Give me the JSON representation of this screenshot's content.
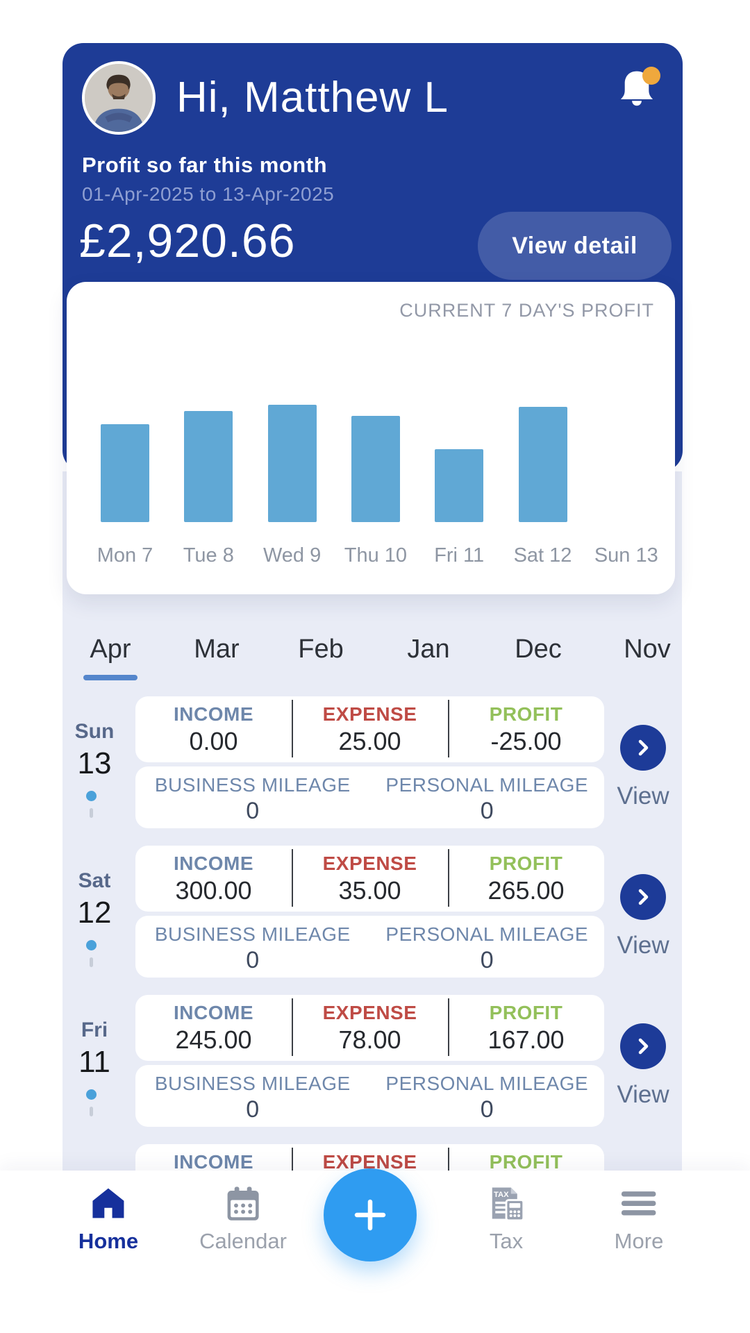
{
  "header": {
    "greeting": "Hi, Matthew L",
    "avatar": "matthew-profile-photo",
    "section_label": "Profit so far this month",
    "date_range": "01-Apr-2025 to 13-Apr-2025",
    "amount": "£2,920.66",
    "view_detail": "View detail"
  },
  "chart_data": {
    "type": "bar",
    "title": "CURRENT 7 DAY'S PROFIT",
    "categories": [
      "Mon 7",
      "Tue 8",
      "Wed 9",
      "Thu 10",
      "Fri 11",
      "Sat 12",
      "Sun 13"
    ],
    "values": [
      225,
      255,
      270,
      245,
      167,
      265,
      0
    ],
    "values_estimated": true,
    "xlabel": "",
    "ylabel": "",
    "ylim": [
      0,
      280
    ],
    "grid": false,
    "legend": false,
    "bar_color": "#60a8d5"
  },
  "months": {
    "tabs": [
      "Apr",
      "Mar",
      "Feb",
      "Jan",
      "Dec",
      "Nov"
    ],
    "active_index": 0
  },
  "list": {
    "labels": {
      "income": "INCOME",
      "expense": "EXPENSE",
      "profit": "PROFIT",
      "business_mileage": "BUSINESS MILEAGE",
      "personal_mileage": "PERSONAL MILEAGE",
      "view": "View"
    },
    "days": [
      {
        "day_name": "Sun",
        "day_num": "13",
        "income": "0.00",
        "expense": "25.00",
        "profit": "-25.00",
        "business_mileage": "0",
        "personal_mileage": "0"
      },
      {
        "day_name": "Sat",
        "day_num": "12",
        "income": "300.00",
        "expense": "35.00",
        "profit": "265.00",
        "business_mileage": "0",
        "personal_mileage": "0"
      },
      {
        "day_name": "Fri",
        "day_num": "11",
        "income": "245.00",
        "expense": "78.00",
        "profit": "167.00",
        "business_mileage": "0",
        "personal_mileage": "0"
      },
      {
        "day_name": "",
        "day_num": "",
        "income": "",
        "expense": "",
        "profit": "",
        "business_mileage": "",
        "personal_mileage": ""
      }
    ]
  },
  "nav": {
    "items": [
      {
        "label": "Home",
        "active": true
      },
      {
        "label": "Calendar",
        "active": false
      },
      {
        "label": "Tax",
        "active": false
      },
      {
        "label": "More",
        "active": false
      }
    ],
    "fab_label": "+"
  },
  "colors": {
    "header_blue": "#1e3c96",
    "view_circle_blue": "#1d3b98",
    "fab_blue": "#2f9cf1",
    "bar_blue": "#60a8d5",
    "badge_orange": "#efa83d",
    "income_label": "#6e87ab",
    "expense_label": "#bf4b45",
    "profit_label": "#93c05a",
    "list_background": "#e9ecf6",
    "tab_underline": "#5586cc",
    "nav_active_blue": "#16309c",
    "nav_inactive_grey": "#9ba1ac"
  }
}
